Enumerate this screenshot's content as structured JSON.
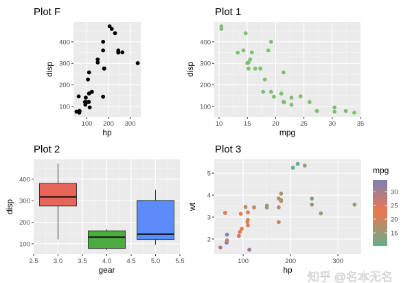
{
  "cars": {
    "mpg": [
      21,
      21,
      22.8,
      21.4,
      18.7,
      18.1,
      14.3,
      24.4,
      22.8,
      19.2,
      17.8,
      16.4,
      17.3,
      15.2,
      10.4,
      10.4,
      14.7,
      32.4,
      30.4,
      33.9,
      21.5,
      15.5,
      15.2,
      13.3,
      19.2,
      27.3,
      26,
      30.4,
      15.8,
      19.7,
      15,
      21.4
    ],
    "disp": [
      160,
      160,
      108,
      258,
      360,
      225,
      360,
      146.7,
      140.8,
      167.6,
      167.6,
      275.8,
      275.8,
      275.8,
      472,
      460,
      440,
      78.7,
      75.7,
      71.1,
      120.1,
      318,
      304,
      350,
      400,
      79,
      120.3,
      95.1,
      351,
      145,
      301,
      121
    ],
    "hp": [
      110,
      110,
      93,
      110,
      175,
      105,
      245,
      62,
      95,
      123,
      123,
      180,
      180,
      180,
      205,
      215,
      230,
      66,
      52,
      65,
      97,
      150,
      150,
      245,
      175,
      66,
      91,
      113,
      264,
      175,
      335,
      109
    ],
    "wt": [
      2.62,
      2.875,
      2.32,
      3.215,
      3.44,
      3.46,
      3.57,
      3.19,
      3.15,
      3.44,
      3.44,
      4.07,
      3.73,
      3.78,
      5.25,
      5.424,
      5.345,
      2.2,
      1.615,
      1.835,
      2.465,
      3.52,
      3.435,
      3.84,
      3.845,
      1.935,
      2.14,
      1.513,
      3.17,
      2.77,
      3.57,
      2.78
    ]
  },
  "chart_data": [
    {
      "type": "scatter",
      "title": "Plot F",
      "xlabel": "hp",
      "ylabel": "disp",
      "x_field": "hp",
      "y_field": "disp",
      "xlim": [
        38,
        349
      ],
      "ylim": [
        52,
        492
      ],
      "xticks": [
        100,
        200,
        300
      ],
      "yticks": [
        100,
        200,
        300,
        400
      ],
      "point_color": "#000000",
      "grid": true
    },
    {
      "type": "scatter",
      "title": "Plot 1",
      "xlabel": "mpg",
      "ylabel": "disp",
      "x_field": "mpg",
      "y_field": "disp",
      "xlim": [
        9.15,
        35
      ],
      "ylim": [
        52,
        492
      ],
      "xticks": [
        10,
        15,
        20,
        25,
        30,
        35
      ],
      "yticks": [
        100,
        200,
        300,
        400
      ],
      "point_color": "#7fbf6f",
      "grid": true
    },
    {
      "type": "box",
      "title": "Plot 2",
      "xlabel": "gear",
      "ylabel": "disp",
      "xlim": [
        2.5,
        5.5
      ],
      "ylim": [
        52,
        492
      ],
      "xticks": [
        "2.5",
        "3.0",
        "3.5",
        "4.0",
        "4.5",
        "5.0",
        "5.5"
      ],
      "yticks": [
        100,
        200,
        300,
        400
      ],
      "boxes": [
        {
          "gear": 3,
          "min": 120.1,
          "q1": 275.8,
          "median": 318,
          "q3": 380,
          "max": 472,
          "fill": "#e8655a"
        },
        {
          "gear": 4,
          "min": 71.1,
          "q1": 78.7,
          "median": 130.9,
          "q3": 160,
          "max": 167.6,
          "fill": "#4cac3f"
        },
        {
          "gear": 5,
          "min": 95.1,
          "q1": 120.3,
          "median": 145,
          "q3": 301,
          "max": 351,
          "fill": "#5c8cf8"
        }
      ],
      "grid": true
    },
    {
      "type": "scatter",
      "title": "Plot 3",
      "xlabel": "hp",
      "ylabel": "wt",
      "x_field": "hp",
      "y_field": "wt",
      "color_field": "mpg",
      "xlim": [
        39,
        349
      ],
      "ylim": [
        1.31,
        5.63
      ],
      "xticks": [
        100,
        200,
        300
      ],
      "yticks": [
        2,
        3,
        4,
        5
      ],
      "legend": {
        "title": "mpg",
        "ticks": [
          15,
          20,
          25,
          30
        ],
        "range": [
          10.25,
          34.25
        ],
        "position": "right",
        "gradient": [
          {
            "v": 10.4,
            "c": "#66ad8c"
          },
          {
            "v": 23,
            "c": "#ee774f"
          },
          {
            "v": 33.9,
            "c": "#7b80b2"
          }
        ]
      },
      "grid": true
    }
  ],
  "watermark": "知乎 @名本无名"
}
